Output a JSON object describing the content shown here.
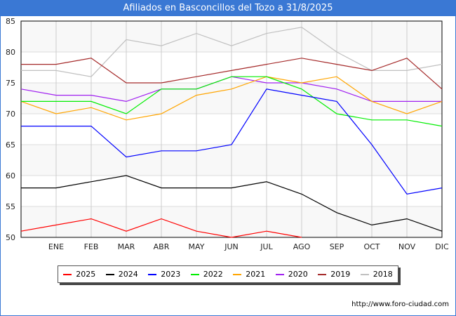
{
  "title": "Afiliados en Basconcillos del Tozo a 31/8/2025",
  "footer_url": "http://www.foro-ciudad.com",
  "chart_data": {
    "type": "line",
    "title": "Afiliados en Basconcillos del Tozo a 31/8/2025",
    "categories": [
      "",
      "ENE",
      "FEB",
      "MAR",
      "ABR",
      "MAY",
      "JUN",
      "JUL",
      "AGO",
      "SEP",
      "OCT",
      "NOV",
      "DIC"
    ],
    "ylim": [
      50,
      85
    ],
    "yticks": [
      50,
      55,
      60,
      65,
      70,
      75,
      80,
      85
    ],
    "grid": true,
    "legend_position": "bottom",
    "series": [
      {
        "name": "2025",
        "color": "#ff0000",
        "values": [
          51,
          52,
          53,
          51,
          53,
          51,
          50,
          51,
          50,
          null,
          null,
          null,
          null
        ]
      },
      {
        "name": "2024",
        "color": "#000000",
        "values": [
          58,
          58,
          59,
          60,
          58,
          58,
          58,
          59,
          57,
          54,
          52,
          53,
          51
        ]
      },
      {
        "name": "2023",
        "color": "#0000ff",
        "values": [
          68,
          68,
          68,
          63,
          64,
          64,
          65,
          74,
          73,
          72,
          65,
          57,
          58
        ]
      },
      {
        "name": "2022",
        "color": "#00ee00",
        "values": [
          72,
          72,
          72,
          70,
          74,
          74,
          76,
          76,
          74,
          70,
          69,
          69,
          68
        ]
      },
      {
        "name": "2021",
        "color": "#ffa500",
        "values": [
          72,
          70,
          71,
          69,
          70,
          73,
          74,
          76,
          75,
          76,
          72,
          70,
          72
        ]
      },
      {
        "name": "2020",
        "color": "#a020f0",
        "values": [
          74,
          73,
          73,
          72,
          74,
          74,
          76,
          75,
          75,
          74,
          72,
          72,
          72
        ]
      },
      {
        "name": "2019",
        "color": "#a52a2a",
        "values": [
          78,
          78,
          79,
          75,
          75,
          76,
          77,
          78,
          79,
          78,
          77,
          79,
          74
        ]
      },
      {
        "name": "2018",
        "color": "#c0c0c0",
        "values": [
          77,
          77,
          76,
          82,
          81,
          83,
          81,
          83,
          84,
          80,
          77,
          77,
          78
        ]
      }
    ]
  }
}
